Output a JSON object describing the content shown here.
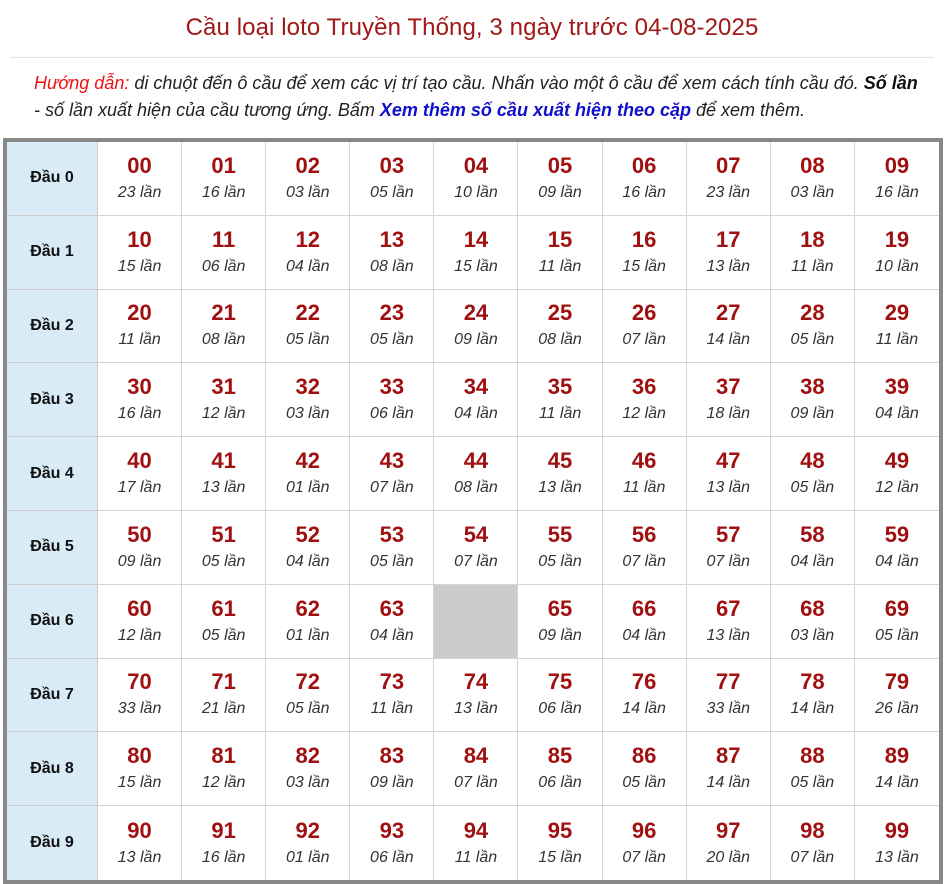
{
  "title": "Cầu loại loto Truyền Thống, 3 ngày trước 04-08-2025",
  "guide": {
    "label": "Hướng dẫn:",
    "text1": " di chuột đến ô cầu để xem các vị trí tạo cầu. Nhấn vào một ô cầu để xem cách tính cầu đó. ",
    "bold": "Số lần",
    "text2": " - số lần xuất hiện của cầu tương ứng. Bấm ",
    "link": "Xem thêm số cầu xuất hiện theo cặp",
    "text3": " để xem thêm."
  },
  "colors": {
    "title": "#a01818",
    "number": "#a01010",
    "header_bg": "#d9ebf6",
    "empty_cell": "#cccccc",
    "link": "#1010cc",
    "guide_label": "#ee1111"
  },
  "rows": [
    {
      "label": "Đầu 0",
      "cells": [
        {
          "num": "00",
          "count": "23 lần"
        },
        {
          "num": "01",
          "count": "16 lần"
        },
        {
          "num": "02",
          "count": "03 lần"
        },
        {
          "num": "03",
          "count": "05 lần"
        },
        {
          "num": "04",
          "count": "10 lần"
        },
        {
          "num": "05",
          "count": "09 lần"
        },
        {
          "num": "06",
          "count": "16 lần"
        },
        {
          "num": "07",
          "count": "23 lần"
        },
        {
          "num": "08",
          "count": "03 lần"
        },
        {
          "num": "09",
          "count": "16 lần"
        }
      ]
    },
    {
      "label": "Đầu 1",
      "cells": [
        {
          "num": "10",
          "count": "15 lần"
        },
        {
          "num": "11",
          "count": "06 lần"
        },
        {
          "num": "12",
          "count": "04 lần"
        },
        {
          "num": "13",
          "count": "08 lần"
        },
        {
          "num": "14",
          "count": "15 lần"
        },
        {
          "num": "15",
          "count": "11 lần"
        },
        {
          "num": "16",
          "count": "15 lần"
        },
        {
          "num": "17",
          "count": "13 lần"
        },
        {
          "num": "18",
          "count": "11 lần"
        },
        {
          "num": "19",
          "count": "10 lần"
        }
      ]
    },
    {
      "label": "Đầu 2",
      "cells": [
        {
          "num": "20",
          "count": "11 lần"
        },
        {
          "num": "21",
          "count": "08 lần"
        },
        {
          "num": "22",
          "count": "05 lần"
        },
        {
          "num": "23",
          "count": "05 lần"
        },
        {
          "num": "24",
          "count": "09 lần"
        },
        {
          "num": "25",
          "count": "08 lần"
        },
        {
          "num": "26",
          "count": "07 lần"
        },
        {
          "num": "27",
          "count": "14 lần"
        },
        {
          "num": "28",
          "count": "05 lần"
        },
        {
          "num": "29",
          "count": "11 lần"
        }
      ]
    },
    {
      "label": "Đầu 3",
      "cells": [
        {
          "num": "30",
          "count": "16 lần"
        },
        {
          "num": "31",
          "count": "12 lần"
        },
        {
          "num": "32",
          "count": "03 lần"
        },
        {
          "num": "33",
          "count": "06 lần"
        },
        {
          "num": "34",
          "count": "04 lần"
        },
        {
          "num": "35",
          "count": "11 lần"
        },
        {
          "num": "36",
          "count": "12 lần"
        },
        {
          "num": "37",
          "count": "18 lần"
        },
        {
          "num": "38",
          "count": "09 lần"
        },
        {
          "num": "39",
          "count": "04 lần"
        }
      ]
    },
    {
      "label": "Đầu 4",
      "cells": [
        {
          "num": "40",
          "count": "17 lần"
        },
        {
          "num": "41",
          "count": "13 lần"
        },
        {
          "num": "42",
          "count": "01 lần"
        },
        {
          "num": "43",
          "count": "07 lần"
        },
        {
          "num": "44",
          "count": "08 lần"
        },
        {
          "num": "45",
          "count": "13 lần"
        },
        {
          "num": "46",
          "count": "11 lần"
        },
        {
          "num": "47",
          "count": "13 lần"
        },
        {
          "num": "48",
          "count": "05 lần"
        },
        {
          "num": "49",
          "count": "12 lần"
        }
      ]
    },
    {
      "label": "Đầu 5",
      "cells": [
        {
          "num": "50",
          "count": "09 lần"
        },
        {
          "num": "51",
          "count": "05 lần"
        },
        {
          "num": "52",
          "count": "04 lần"
        },
        {
          "num": "53",
          "count": "05 lần"
        },
        {
          "num": "54",
          "count": "07 lần"
        },
        {
          "num": "55",
          "count": "05 lần"
        },
        {
          "num": "56",
          "count": "07 lần"
        },
        {
          "num": "57",
          "count": "07 lần"
        },
        {
          "num": "58",
          "count": "04 lần"
        },
        {
          "num": "59",
          "count": "04 lần"
        }
      ]
    },
    {
      "label": "Đầu 6",
      "cells": [
        {
          "num": "60",
          "count": "12 lần"
        },
        {
          "num": "61",
          "count": "05 lần"
        },
        {
          "num": "62",
          "count": "01 lần"
        },
        {
          "num": "63",
          "count": "04 lần"
        },
        {
          "num": "",
          "count": "",
          "empty": true
        },
        {
          "num": "65",
          "count": "09 lần"
        },
        {
          "num": "66",
          "count": "04 lần"
        },
        {
          "num": "67",
          "count": "13 lần"
        },
        {
          "num": "68",
          "count": "03 lần"
        },
        {
          "num": "69",
          "count": "05 lần"
        }
      ]
    },
    {
      "label": "Đầu 7",
      "cells": [
        {
          "num": "70",
          "count": "33 lần"
        },
        {
          "num": "71",
          "count": "21 lần"
        },
        {
          "num": "72",
          "count": "05 lần"
        },
        {
          "num": "73",
          "count": "11 lần"
        },
        {
          "num": "74",
          "count": "13 lần"
        },
        {
          "num": "75",
          "count": "06 lần"
        },
        {
          "num": "76",
          "count": "14 lần"
        },
        {
          "num": "77",
          "count": "33 lần"
        },
        {
          "num": "78",
          "count": "14 lần"
        },
        {
          "num": "79",
          "count": "26 lần"
        }
      ]
    },
    {
      "label": "Đầu 8",
      "cells": [
        {
          "num": "80",
          "count": "15 lần"
        },
        {
          "num": "81",
          "count": "12 lần"
        },
        {
          "num": "82",
          "count": "03 lần"
        },
        {
          "num": "83",
          "count": "09 lần"
        },
        {
          "num": "84",
          "count": "07 lần"
        },
        {
          "num": "85",
          "count": "06 lần"
        },
        {
          "num": "86",
          "count": "05 lần"
        },
        {
          "num": "87",
          "count": "14 lần"
        },
        {
          "num": "88",
          "count": "05 lần"
        },
        {
          "num": "89",
          "count": "14 lần"
        }
      ]
    },
    {
      "label": "Đầu 9",
      "cells": [
        {
          "num": "90",
          "count": "13 lần"
        },
        {
          "num": "91",
          "count": "16 lần"
        },
        {
          "num": "92",
          "count": "01 lần"
        },
        {
          "num": "93",
          "count": "06 lần"
        },
        {
          "num": "94",
          "count": "11 lần"
        },
        {
          "num": "95",
          "count": "15 lần"
        },
        {
          "num": "96",
          "count": "07 lần"
        },
        {
          "num": "97",
          "count": "20 lần"
        },
        {
          "num": "98",
          "count": "07 lần"
        },
        {
          "num": "99",
          "count": "13 lần"
        }
      ]
    }
  ]
}
